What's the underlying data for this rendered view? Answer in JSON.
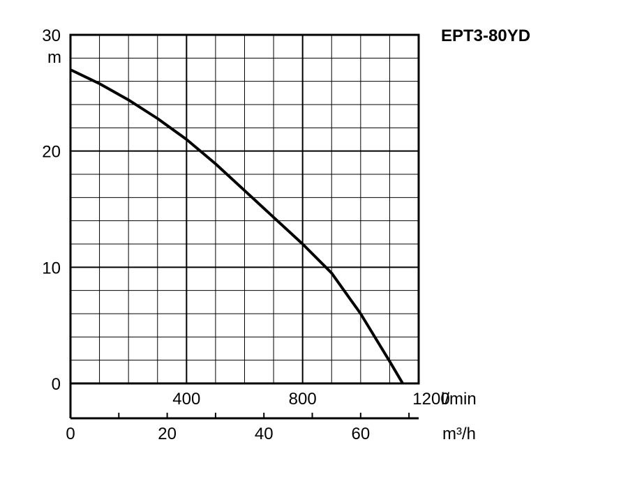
{
  "chart_data": {
    "type": "line",
    "title": "EPT3-80YD",
    "ylabel": "m",
    "x_unit_primary": "l/min",
    "x_unit_secondary": "m³/h",
    "ylim": [
      0,
      30
    ],
    "xlim": [
      0,
      1200
    ],
    "y_ticks": [
      "0",
      "10",
      "20",
      "30"
    ],
    "x_ticks_primary": [
      "400",
      "800",
      "1200"
    ],
    "x_ticks_secondary": [
      "0",
      "20",
      "40",
      "60"
    ],
    "grid": true,
    "series": [
      {
        "values": [
          {
            "x": 0,
            "y": 27.0
          },
          {
            "x": 100,
            "y": 25.8
          },
          {
            "x": 200,
            "y": 24.4
          },
          {
            "x": 300,
            "y": 22.8
          },
          {
            "x": 400,
            "y": 21.0
          },
          {
            "x": 500,
            "y": 18.9
          },
          {
            "x": 600,
            "y": 16.6
          },
          {
            "x": 700,
            "y": 14.3
          },
          {
            "x": 800,
            "y": 12.0
          },
          {
            "x": 900,
            "y": 9.5
          },
          {
            "x": 1000,
            "y": 6.0
          },
          {
            "x": 1100,
            "y": 1.9
          },
          {
            "x": 1145,
            "y": 0.0
          }
        ]
      }
    ]
  }
}
